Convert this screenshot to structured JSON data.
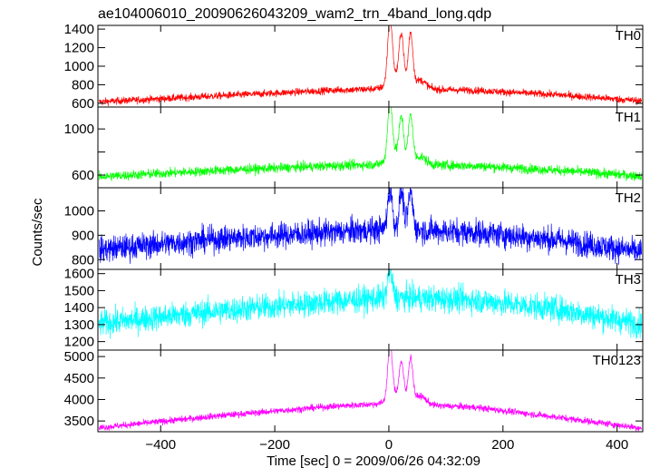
{
  "chart_data": {
    "type": "line",
    "title": "ae104006010_20090626043209_wam2_trn_4band_long.qdp",
    "xlabel": "Time [sec] 0 = 2009/06/26 04:32:09",
    "ylabel": "Counts/sec",
    "xlim": [
      -510,
      445
    ],
    "x_ticks": [
      -400,
      -200,
      0,
      200,
      400
    ],
    "x_tick_labels": [
      "−400",
      "−200",
      "0",
      "200",
      "400"
    ],
    "shared_x": true,
    "panels": [
      {
        "name": "TH0",
        "color": "#ff0000",
        "ylim": [
          560,
          1440
        ],
        "y_ticks": [
          600,
          800,
          1000,
          1200,
          1400
        ],
        "y_tick_labels": [
          "600",
          "800",
          "1000",
          "1200",
          "1400"
        ],
        "baseline": [
          [
            -510,
            615
          ],
          [
            -300,
            680
          ],
          [
            -100,
            740
          ],
          [
            0,
            760
          ],
          [
            150,
            740
          ],
          [
            300,
            690
          ],
          [
            445,
            625
          ]
        ],
        "noise": 28,
        "spikes": [
          [
            2,
            1440,
            4
          ],
          [
            22,
            1270,
            4
          ],
          [
            38,
            1330,
            4
          ],
          [
            12,
            890,
            12
          ],
          [
            55,
            850,
            10
          ]
        ]
      },
      {
        "name": "TH1",
        "color": "#00ff00",
        "ylim": [
          490,
          1190
        ],
        "y_ticks": [
          600,
          800,
          1000
        ],
        "y_tick_labels": [
          "600",
          "",
          "1000"
        ],
        "baseline": [
          [
            -510,
            585
          ],
          [
            -300,
            640
          ],
          [
            -100,
            680
          ],
          [
            0,
            695
          ],
          [
            150,
            680
          ],
          [
            300,
            640
          ],
          [
            445,
            590
          ]
        ],
        "noise": 30,
        "spikes": [
          [
            2,
            1180,
            4
          ],
          [
            22,
            1040,
            4
          ],
          [
            38,
            1100,
            4
          ],
          [
            12,
            790,
            12
          ],
          [
            55,
            760,
            10
          ]
        ]
      },
      {
        "name": "TH2",
        "color": "#0000ff",
        "ylim": [
          760,
          1095
        ],
        "y_ticks": [
          800,
          900,
          1000
        ],
        "y_tick_labels": [
          "800",
          "900",
          "1000"
        ],
        "baseline": [
          [
            -510,
            840
          ],
          [
            -300,
            885
          ],
          [
            -100,
            912
          ],
          [
            0,
            925
          ],
          [
            150,
            912
          ],
          [
            300,
            880
          ],
          [
            445,
            830
          ]
        ],
        "noise": 38,
        "spikes": [
          [
            2,
            1090,
            4
          ],
          [
            22,
            1080,
            4
          ],
          [
            38,
            1075,
            4
          ]
        ]
      },
      {
        "name": "TH3",
        "color": "#00ffff",
        "ylim": [
          1150,
          1625
        ],
        "y_ticks": [
          1200,
          1300,
          1400,
          1500,
          1600
        ],
        "y_tick_labels": [
          "1200",
          "1300",
          "1400",
          "1500",
          "1600"
        ],
        "baseline": [
          [
            -510,
            1305
          ],
          [
            -300,
            1380
          ],
          [
            -100,
            1435
          ],
          [
            0,
            1460
          ],
          [
            150,
            1445
          ],
          [
            300,
            1390
          ],
          [
            445,
            1300
          ]
        ],
        "noise": 55,
        "spikes": [
          [
            2,
            1620,
            4
          ]
        ]
      },
      {
        "name": "TH0123",
        "color": "#ff00ff",
        "ylim": [
          3250,
          5150
        ],
        "y_ticks": [
          3500,
          4000,
          4500,
          5000
        ],
        "y_tick_labels": [
          "3500",
          "4000",
          "4500",
          "5000"
        ],
        "baseline": [
          [
            -510,
            3340
          ],
          [
            -300,
            3620
          ],
          [
            -100,
            3840
          ],
          [
            0,
            3910
          ],
          [
            150,
            3820
          ],
          [
            300,
            3580
          ],
          [
            445,
            3330
          ]
        ],
        "noise": 55,
        "spikes": [
          [
            2,
            5150,
            4
          ],
          [
            22,
            4750,
            4
          ],
          [
            38,
            4920,
            4
          ],
          [
            12,
            4100,
            12
          ],
          [
            55,
            4080,
            10
          ]
        ]
      }
    ]
  }
}
